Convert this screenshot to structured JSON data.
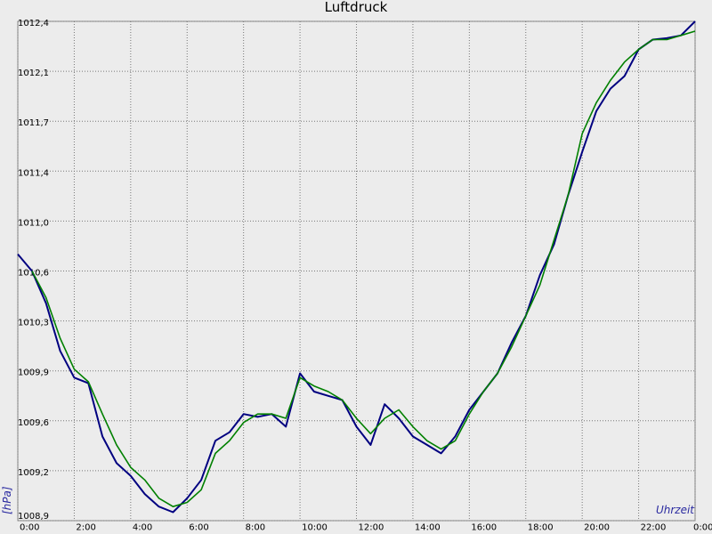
{
  "chart_data": {
    "type": "line",
    "title": "Luftdruck",
    "y_label": "[hPa]",
    "x_label": "Uhrzeit",
    "grid": true,
    "xlim": [
      0,
      24
    ],
    "xticks": [
      {
        "value": 0,
        "label": "0:00"
      },
      {
        "value": 2,
        "label": "2:00"
      },
      {
        "value": 4,
        "label": "4:00"
      },
      {
        "value": 6,
        "label": "6:00"
      },
      {
        "value": 8,
        "label": "8:00"
      },
      {
        "value": 10,
        "label": "10:00"
      },
      {
        "value": 12,
        "label": "12:00"
      },
      {
        "value": 14,
        "label": "14:00"
      },
      {
        "value": 16,
        "label": "16:00"
      },
      {
        "value": 18,
        "label": "18:00"
      },
      {
        "value": 20,
        "label": "20:00"
      },
      {
        "value": 22,
        "label": "22:00"
      },
      {
        "value": 24,
        "label": "0:00"
      }
    ],
    "ylim": [
      1008.86,
      1012.42
    ],
    "yticks": [
      {
        "value": 1008.86,
        "label": "1008,9"
      },
      {
        "value": 1009.216,
        "label": "1009,2"
      },
      {
        "value": 1009.572,
        "label": "1009,6"
      },
      {
        "value": 1009.928,
        "label": "1009,9"
      },
      {
        "value": 1010.284,
        "label": "1010,3"
      },
      {
        "value": 1010.64,
        "label": "1010,6"
      },
      {
        "value": 1010.996,
        "label": "1011,0"
      },
      {
        "value": 1011.352,
        "label": "1011,4"
      },
      {
        "value": 1011.708,
        "label": "1011,7"
      },
      {
        "value": 1012.064,
        "label": "1012,1"
      },
      {
        "value": 1012.42,
        "label": "1012,4"
      }
    ],
    "x": [
      0,
      0.5,
      1,
      1.5,
      2,
      2.5,
      3,
      3.5,
      4,
      4.5,
      5,
      5.5,
      6,
      6.5,
      7,
      7.5,
      8,
      8.5,
      9,
      9.5,
      10,
      10.5,
      11,
      11.5,
      12,
      12.5,
      13,
      13.5,
      14,
      14.5,
      15,
      15.5,
      16,
      16.5,
      17,
      17.5,
      18,
      18.5,
      19,
      19.5,
      20,
      20.5,
      21,
      21.5,
      22,
      22.5,
      23,
      23.5,
      24
    ],
    "series": [
      {
        "color": "#000080",
        "values": [
          1010.76,
          1010.64,
          1010.41,
          1010.07,
          1009.88,
          1009.84,
          1009.46,
          1009.27,
          1009.18,
          1009.05,
          1008.96,
          1008.92,
          1009.02,
          1009.15,
          1009.43,
          1009.49,
          1009.62,
          1009.6,
          1009.62,
          1009.53,
          1009.91,
          1009.78,
          1009.75,
          1009.72,
          1009.53,
          1009.4,
          1009.69,
          1009.59,
          1009.46,
          1009.4,
          1009.34,
          1009.46,
          1009.65,
          1009.78,
          1009.91,
          1010.13,
          1010.32,
          1010.61,
          1010.83,
          1011.18,
          1011.49,
          1011.78,
          1011.94,
          1012.03,
          1012.22,
          1012.29,
          1012.3,
          1012.32,
          1012.42
        ]
      },
      {
        "color": "#008000",
        "values": [
          null,
          1010.64,
          1010.45,
          1010.16,
          1009.94,
          1009.85,
          1009.62,
          1009.4,
          1009.24,
          1009.15,
          1009.02,
          1008.96,
          1008.99,
          1009.08,
          1009.34,
          1009.43,
          1009.56,
          1009.62,
          1009.62,
          1009.59,
          1009.88,
          1009.82,
          1009.78,
          1009.72,
          1009.59,
          1009.48,
          1009.59,
          1009.65,
          1009.53,
          1009.43,
          1009.37,
          1009.43,
          1009.62,
          1009.78,
          1009.91,
          1010.1,
          1010.32,
          1010.54,
          1010.86,
          1011.18,
          1011.62,
          1011.84,
          1012.0,
          1012.13,
          1012.22,
          1012.29,
          1012.29,
          1012.32,
          1012.35
        ]
      }
    ]
  }
}
